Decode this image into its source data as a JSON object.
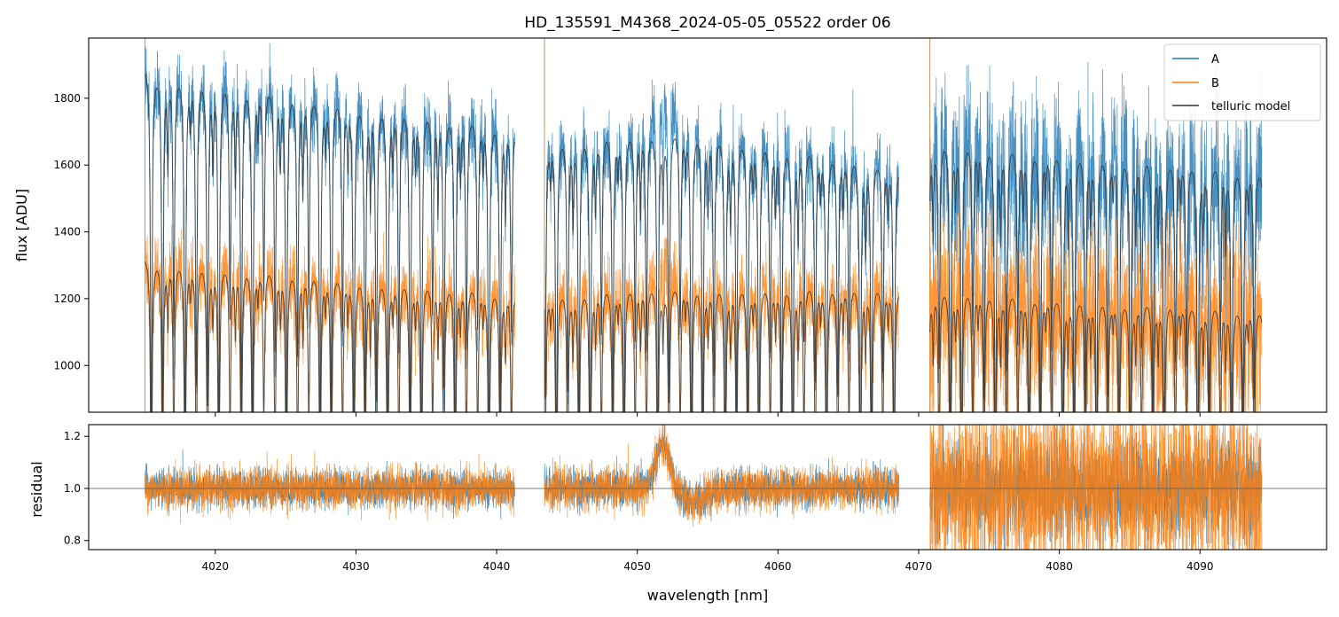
{
  "chart_data": [
    {
      "type": "line",
      "title": "HD_135591_M4368_2024-05-05_05522  order 06",
      "xlabel": "",
      "ylabel": "flux [ADU]",
      "xlim": [
        4011,
        4099
      ],
      "ylim": [
        860,
        1980
      ],
      "x_ticks": [
        4020,
        4030,
        4040,
        4050,
        4060,
        4070,
        4080,
        4090
      ],
      "y_ticks": [
        1000,
        1200,
        1400,
        1600,
        1800
      ],
      "y_tick_labels": [
        "1000",
        "1200",
        "1400",
        "1600",
        "1800"
      ],
      "legend_position": "top-right",
      "segments": [
        [
          4015.0,
          4041.3
        ],
        [
          4043.4,
          4068.6
        ],
        [
          4070.8,
          4094.4
        ]
      ],
      "series": [
        {
          "name": "A",
          "color": "#1f77b4",
          "continuum_x": [
            4015,
            4041,
            4043.5,
            4050,
            4054,
            4068.5,
            4071,
            4094
          ],
          "continuum_y": [
            1900,
            1740,
            1695,
            1720,
            1720,
            1620,
            1690,
            1610
          ],
          "noise_sd": [
            55,
            55,
            55,
            120
          ]
        },
        {
          "name": "B",
          "color": "#ff7f0e",
          "continuum_x": [
            4015,
            4041,
            4043.5,
            4050,
            4054,
            4068.5,
            4071,
            4094
          ],
          "continuum_y": [
            1330,
            1235,
            1230,
            1250,
            1250,
            1250,
            1240,
            1185
          ],
          "noise_sd": [
            55,
            55,
            55,
            120
          ]
        },
        {
          "name": "telluric model",
          "color": "#333333"
        }
      ],
      "absorption_lines": {
        "first_nm": 4015.45,
        "spacing_nm": 0.8,
        "typical_depth": 0.45,
        "deep_depth": 0.6
      },
      "stellar_emission_peak": {
        "center_nm": 4051.9,
        "height": 0.1
      }
    },
    {
      "type": "line",
      "title": "",
      "xlabel": "wavelength [nm]",
      "ylabel": "residual",
      "xlim": [
        4011,
        4099
      ],
      "ylim": [
        0.765,
        1.245
      ],
      "x_ticks": [
        4020,
        4030,
        4040,
        4050,
        4060,
        4070,
        4080,
        4090
      ],
      "x_tick_labels": [
        "4020",
        "4030",
        "4040",
        "4050",
        "4060",
        "4070",
        "4080",
        "4090"
      ],
      "y_ticks": [
        0.8,
        1.0,
        1.2
      ],
      "y_tick_labels": [
        "0.8",
        "1.0",
        "1.2"
      ],
      "reference_line": 1.0,
      "series": [
        {
          "name": "A",
          "color": "#1f77b4",
          "noise_sd": [
            0.035,
            0.035,
            0.035,
            0.09
          ]
        },
        {
          "name": "B",
          "color": "#ff7f0e",
          "noise_sd": [
            0.04,
            0.04,
            0.04,
            0.17
          ]
        }
      ],
      "bump": {
        "center_nm": 4051.8,
        "height": 0.17,
        "width_nm": 0.9,
        "trough_nm": 4054.0,
        "trough_depth": 0.05
      }
    }
  ]
}
